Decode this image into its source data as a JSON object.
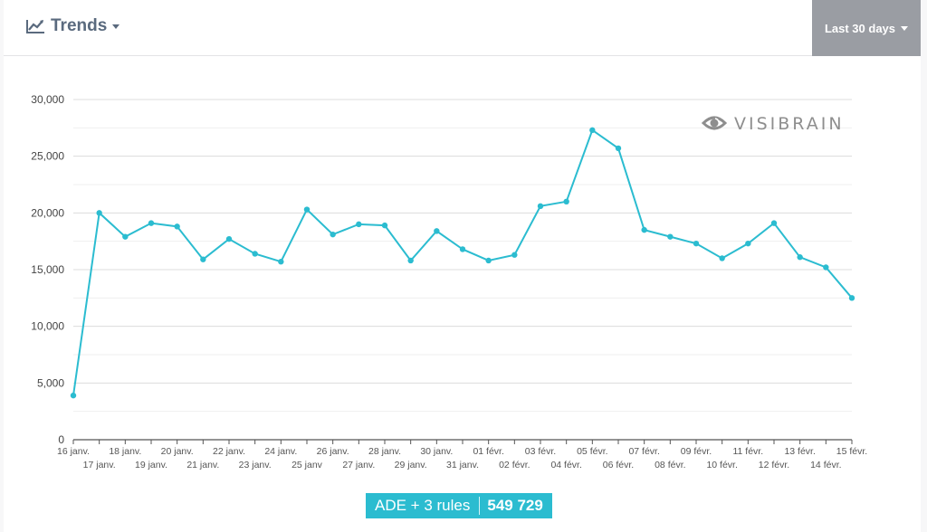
{
  "header": {
    "title": "Trends",
    "range_label": "Last 30 days"
  },
  "watermark": "VISIBRAIN",
  "colors": {
    "line": "#2bbcd0",
    "header_text": "#5a6a7e",
    "range_bg": "#9a9da3",
    "grid": "#e4e4e4"
  },
  "chart_data": {
    "type": "line",
    "ylim": [
      0,
      30000
    ],
    "yticks": [
      "0",
      "5,000",
      "10,000",
      "15,000",
      "20,000",
      "25,000",
      "30,000"
    ],
    "categories": [
      "16 janv.",
      "17 janv.",
      "18 janv.",
      "19 janv.",
      "20 janv.",
      "21 janv.",
      "22 janv.",
      "23 janv.",
      "24 janv.",
      "25 janv",
      "26 janv.",
      "27 janv.",
      "28 janv.",
      "29 janv.",
      "30 janv.",
      "31 janv.",
      "01 févr.",
      "02 févr.",
      "03 févr.",
      "04 févr.",
      "05 févr.",
      "06 févr.",
      "07 févr.",
      "08 févr.",
      "09 févr.",
      "10 févr.",
      "11 févr.",
      "12 févr.",
      "13 févr.",
      "14 févr.",
      "15 févr."
    ],
    "series": [
      {
        "values": [
          3900,
          20000,
          17900,
          19100,
          18800,
          15900,
          17700,
          16400,
          15700,
          20300,
          18100,
          19000,
          18900,
          15800,
          18400,
          16800,
          15800,
          16300,
          20600,
          21000,
          27300,
          25700,
          18500,
          17900,
          17300,
          16000,
          17300,
          19100,
          16100,
          15200,
          12500
        ]
      }
    ],
    "grid": true
  },
  "badge": {
    "label": "ADE + 3 rules",
    "value": "549 729"
  }
}
